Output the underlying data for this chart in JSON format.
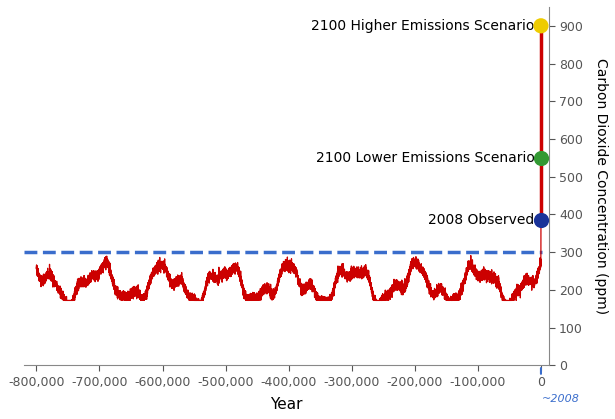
{
  "title": "",
  "xlabel": "Year",
  "ylabel": "Carbon Dioxide Concentration (ppm)",
  "xlim": [
    -820000,
    12000
  ],
  "ylim": [
    0,
    950
  ],
  "yticks": [
    0,
    100,
    200,
    300,
    400,
    500,
    600,
    700,
    800,
    900
  ],
  "xticks": [
    -800000,
    -700000,
    -600000,
    -500000,
    -400000,
    -300000,
    -200000,
    -100000,
    0
  ],
  "xtick_labels": [
    "-800,000",
    "-700,000",
    "-600,000",
    "-500,000",
    "-400,000",
    "-300,000",
    "-200,000",
    "-100,000",
    "0"
  ],
  "dashed_line_y": 300,
  "dashed_line_color": "#3a6dcc",
  "ice_core_color": "#cc0000",
  "observed_2008_y": 385,
  "observed_2008_color": "#1a3399",
  "lower_emissions_y": 550,
  "lower_emissions_color": "#339933",
  "higher_emissions_y": 900,
  "higher_emissions_color": "#eecc00",
  "future_line_color": "#cc0000",
  "annotation_2008_text": "2008 Observed",
  "annotation_lower_text": "2100 Lower Emissions Scenario",
  "annotation_higher_text": "2100 Higher Emissions Scenario",
  "x_now": 0,
  "blue_tick_color": "#3a6dcc",
  "background_color": "#ffffff",
  "font_color": "#000000",
  "label_fontsize": 10,
  "tick_fontsize": 9,
  "annotation_fontsize": 10,
  "dot_size": 120,
  "seed": 42
}
